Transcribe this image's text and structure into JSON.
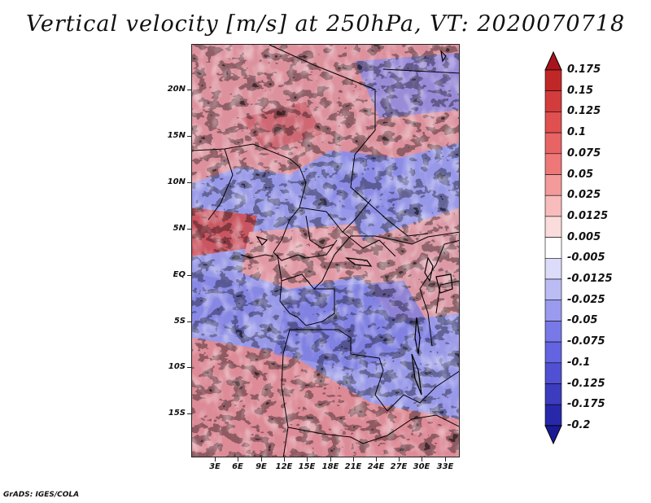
{
  "title": "Vertical velocity [m/s] at 250hPa, VT: 2020070718",
  "footer": "GrADS: IGES/COLA",
  "map": {
    "region": "Central Africa",
    "lat_labels": [
      "20N",
      "15N",
      "10N",
      "5N",
      "EQ",
      "5S",
      "10S",
      "15S"
    ],
    "lon_labels": [
      "3E",
      "6E",
      "9E",
      "12E",
      "15E",
      "18E",
      "21E",
      "24E",
      "27E",
      "30E",
      "33E"
    ]
  },
  "colorbar": {
    "labels": [
      "0.175",
      "0.15",
      "0.125",
      "0.1",
      "0.075",
      "0.05",
      "0.025",
      "0.0125",
      "0.005",
      "-0.005",
      "-0.0125",
      "-0.025",
      "-0.05",
      "-0.075",
      "-0.1",
      "-0.125",
      "-0.175",
      "-0.2"
    ],
    "colors": [
      "#a8141e",
      "#c02828",
      "#d23c3c",
      "#e05050",
      "#e86464",
      "#ee7878",
      "#f49a9a",
      "#f8bcbc",
      "#fbdcdc",
      "#ffffff",
      "#dcdcfa",
      "#bcbcf4",
      "#9a9aee",
      "#7878e8",
      "#6464e0",
      "#5050d2",
      "#3c3cbe",
      "#2828aa",
      "#1a1a96"
    ]
  },
  "colors": {
    "positive": "#e07070",
    "negative": "#7070e0",
    "border": "#000000"
  }
}
